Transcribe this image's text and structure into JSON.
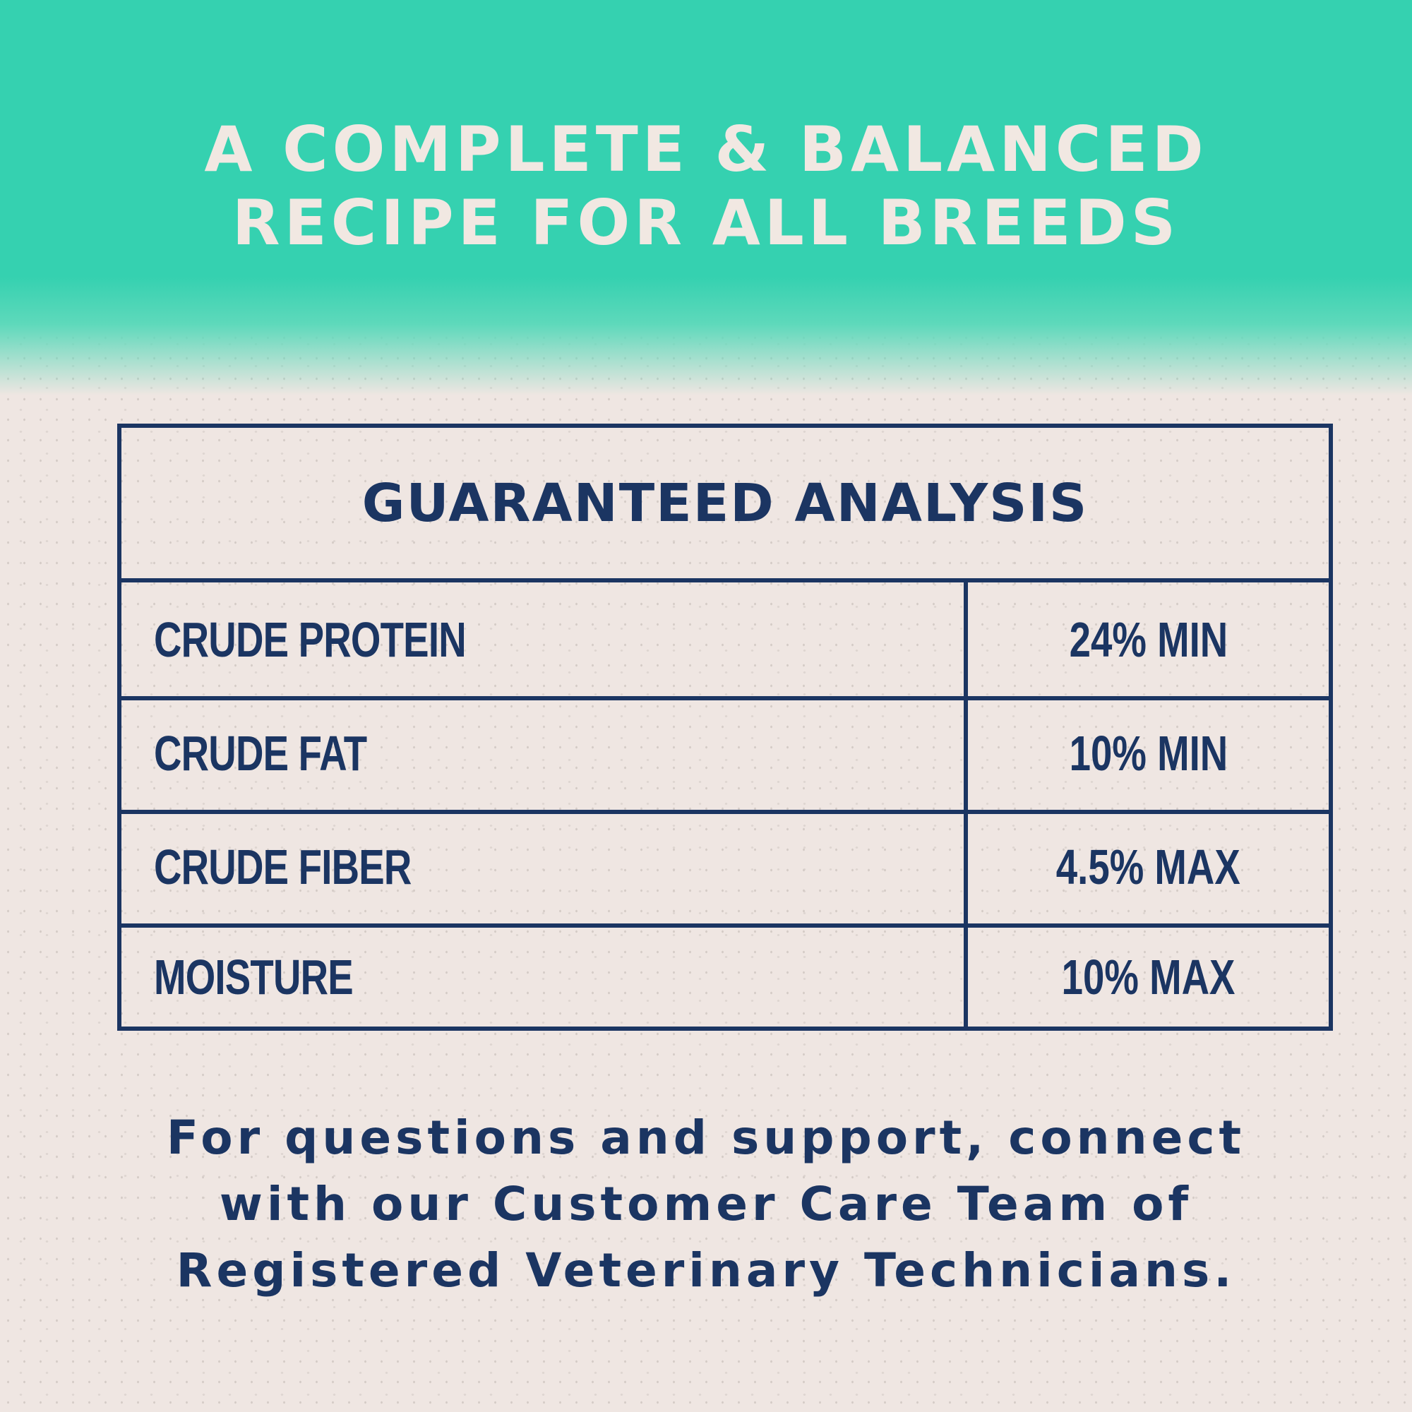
{
  "colors": {
    "teal": "#35d1b0",
    "navy": "#1b3562",
    "background": "#efe6e2",
    "title_text": "#f1e8e2"
  },
  "headline": [
    "A COMPLETE & BALANCED",
    "RECIPE FOR ALL BREEDS"
  ],
  "table": {
    "title": "GUARANTEED ANALYSIS",
    "rows": [
      {
        "label": "CRUDE PROTEIN",
        "value": "24% MIN"
      },
      {
        "label": "CRUDE FAT",
        "value": "10% MIN"
      },
      {
        "label": "CRUDE FIBER",
        "value": "4.5% MAX"
      },
      {
        "label": "MOISTURE",
        "value": "10% MAX"
      }
    ]
  },
  "footer": [
    "For questions and support, connect",
    "with our Customer Care Team of",
    "Registered Veterinary Technicians."
  ]
}
